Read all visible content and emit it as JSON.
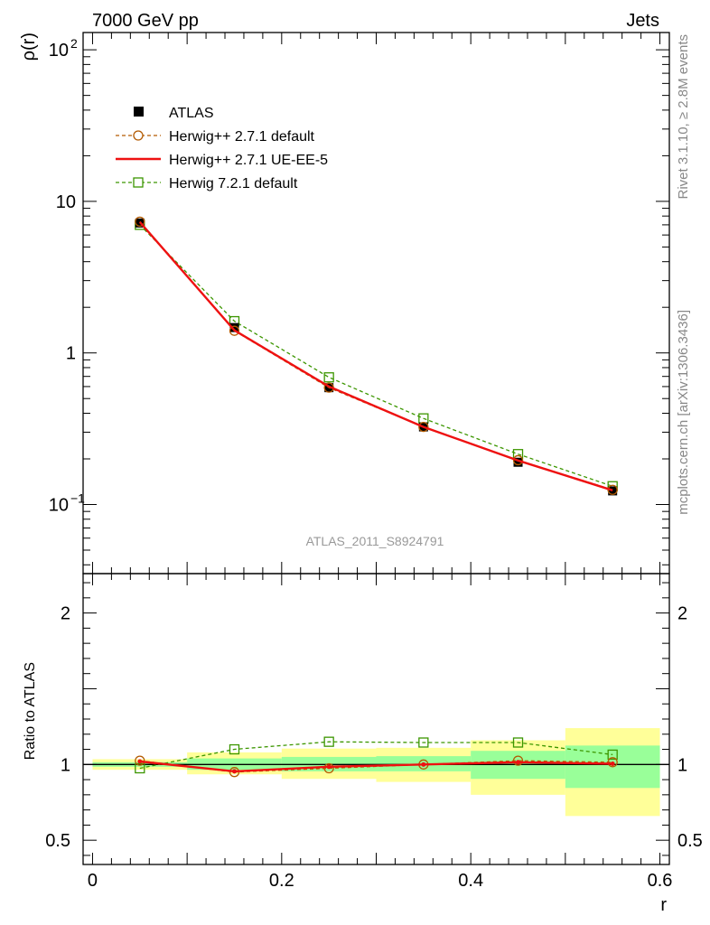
{
  "header": {
    "left": "7000 GeV pp",
    "right": "Jets"
  },
  "side_labels": {
    "rivet": "Rivet 3.1.10, ≥ 2.8M events",
    "mcplots": "mcplots.cern.ch [arXiv:1306.3436]"
  },
  "watermark": "ATLAS_2011_S8924791",
  "colors": {
    "atlas": "#000000",
    "herwig_default": "#b35a00",
    "herwig_ueee5": "#ee1111",
    "herwig721": "#3c9600",
    "band_inner": "#99ff99",
    "band_outer": "#ffff99"
  },
  "legend": [
    {
      "label": "ATLAS",
      "series": "atlas"
    },
    {
      "label": "Herwig++ 2.7.1 default",
      "series": "herwig_default"
    },
    {
      "label": "Herwig++ 2.7.1 UE-EE-5",
      "series": "herwig_ueee5"
    },
    {
      "label": "Herwig 7.2.1 default",
      "series": "herwig721"
    }
  ],
  "chart_data": [
    {
      "type": "line",
      "title": "",
      "xlabel": "r",
      "ylabel": "ρ(r)",
      "yscale": "log",
      "xlim": [
        -0.01,
        0.61
      ],
      "ylim": [
        0.035,
        130
      ],
      "y_ticks": [
        {
          "value": 100,
          "label": "10",
          "exp": "2"
        },
        {
          "value": 10,
          "label": "10",
          "exp": ""
        },
        {
          "value": 1,
          "label": "1",
          "exp": ""
        },
        {
          "value": 0.1,
          "label": "10",
          "exp": "−1"
        }
      ],
      "x": [
        0.05,
        0.15,
        0.25,
        0.35,
        0.45,
        0.55
      ],
      "series": [
        {
          "name": "ATLAS",
          "key": "atlas",
          "values": [
            7.2,
            1.47,
            0.59,
            0.325,
            0.19,
            0.123
          ]
        },
        {
          "name": "Herwig++ 2.7.1 default",
          "key": "herwig_default",
          "values": [
            7.35,
            1.4,
            0.59,
            0.325,
            0.196,
            0.125
          ]
        },
        {
          "name": "Herwig++ 2.7.1 UE-EE-5",
          "key": "herwig_ueee5",
          "values": [
            7.3,
            1.41,
            0.6,
            0.325,
            0.195,
            0.124
          ]
        },
        {
          "name": "Herwig 7.2.1 default",
          "key": "herwig721",
          "values": [
            7.0,
            1.62,
            0.69,
            0.37,
            0.215,
            0.132
          ]
        }
      ]
    },
    {
      "type": "line",
      "title": "",
      "xlabel": "r",
      "ylabel": "Ratio to ATLAS",
      "xlim": [
        -0.01,
        0.61
      ],
      "ylim": [
        0.34,
        2.26
      ],
      "y_ticks": [
        {
          "value": 2,
          "label": "2"
        },
        {
          "value": 1,
          "label": "1"
        },
        {
          "value": 0.5,
          "label": "0.5"
        }
      ],
      "x_ticks": [
        {
          "value": 0,
          "label": "0"
        },
        {
          "value": 0.2,
          "label": "0.2"
        },
        {
          "value": 0.4,
          "label": "0.4"
        },
        {
          "value": 0.6,
          "label": "0.6"
        }
      ],
      "x": [
        0.05,
        0.15,
        0.25,
        0.35,
        0.45,
        0.55
      ],
      "bins": [
        [
          0,
          0.1
        ],
        [
          0.1,
          0.2
        ],
        [
          0.2,
          0.3
        ],
        [
          0.3,
          0.4
        ],
        [
          0.4,
          0.5
        ],
        [
          0.5,
          0.6
        ]
      ],
      "band_inner": [
        [
          0.985,
          1.015
        ],
        [
          0.965,
          1.04
        ],
        [
          0.955,
          1.05
        ],
        [
          0.955,
          1.055
        ],
        [
          0.905,
          1.09
        ],
        [
          0.845,
          1.125
        ]
      ],
      "band_outer": [
        [
          0.965,
          1.035
        ],
        [
          0.935,
          1.08
        ],
        [
          0.905,
          1.105
        ],
        [
          0.885,
          1.11
        ],
        [
          0.8,
          1.16
        ],
        [
          0.66,
          1.24
        ]
      ],
      "series": [
        {
          "name": "Herwig++ 2.7.1 default",
          "key": "herwig_default",
          "values": [
            1.025,
            0.95,
            0.975,
            1.0,
            1.025,
            1.015
          ]
        },
        {
          "name": "Herwig++ 2.7.1 UE-EE-5",
          "key": "herwig_ueee5",
          "values": [
            1.02,
            0.955,
            0.985,
            1.0,
            1.015,
            1.005
          ]
        },
        {
          "name": "Herwig 7.2.1 default",
          "key": "herwig721",
          "values": [
            0.975,
            1.1,
            1.15,
            1.145,
            1.145,
            1.065
          ]
        }
      ]
    }
  ]
}
